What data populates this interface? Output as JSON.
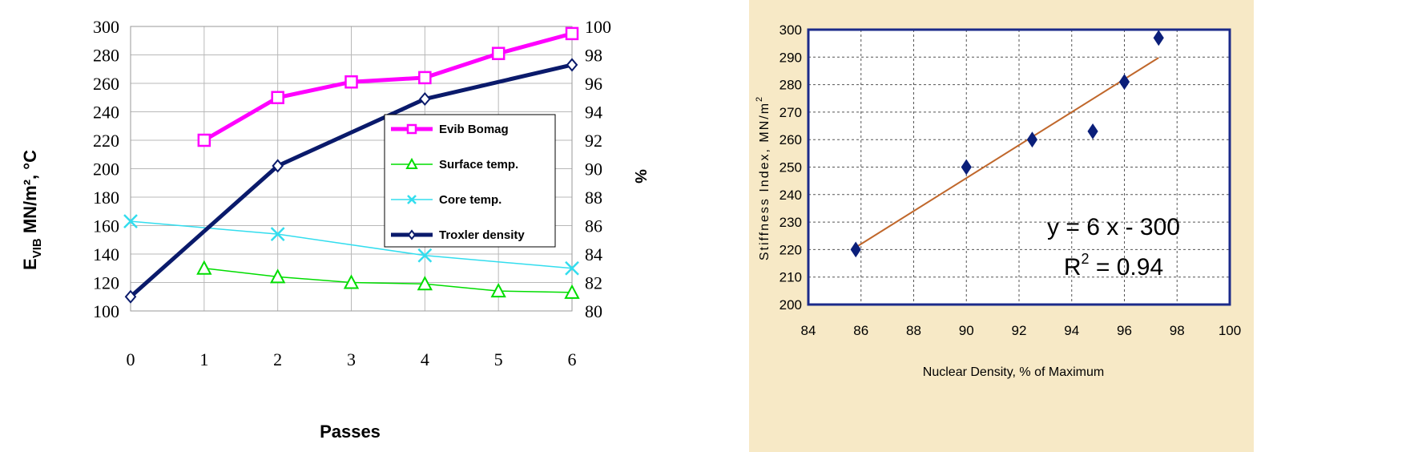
{
  "chart_data": [
    {
      "type": "line",
      "xlabel": "Passes",
      "ylabel_main": "E",
      "ylabel_sub": "VIB",
      "ylabel_rest": " MN/m², °C",
      "y2label": "%",
      "x_ticks": [
        "0",
        "1",
        "2",
        "3",
        "4",
        "5",
        "6"
      ],
      "y_ticks": [
        "100",
        "120",
        "140",
        "160",
        "180",
        "200",
        "220",
        "240",
        "260",
        "280",
        "300"
      ],
      "y2_ticks": [
        "80",
        "82",
        "84",
        "86",
        "88",
        "90",
        "92",
        "94",
        "96",
        "98",
        "100"
      ],
      "xlim": [
        0,
        6
      ],
      "ylim": [
        100,
        300
      ],
      "y2lim": [
        80,
        100
      ],
      "grid": true,
      "legend_position": "center-right",
      "series": [
        {
          "name": "Evib Bomag",
          "axis": "left",
          "color": "#ff00ff",
          "marker": "square",
          "x": [
            1,
            2,
            3,
            4,
            5,
            6
          ],
          "y": [
            220,
            250,
            261,
            264,
            281,
            295
          ]
        },
        {
          "name": "Surface temp.",
          "axis": "left",
          "color": "#00dd00",
          "marker": "triangle",
          "x": [
            1,
            2,
            3,
            4,
            5,
            6
          ],
          "y": [
            130,
            124,
            120,
            119,
            114,
            113
          ]
        },
        {
          "name": "Core temp.",
          "axis": "left",
          "color": "#33ddee",
          "marker": "x",
          "x": [
            0,
            2,
            4,
            6
          ],
          "y": [
            163,
            154,
            139,
            130
          ]
        },
        {
          "name": "Troxler density",
          "axis": "right",
          "color": "#0a1a6b",
          "marker": "diamond",
          "x": [
            0,
            2,
            4,
            6
          ],
          "y": [
            81,
            90.2,
            94.9,
            97.3
          ]
        }
      ]
    },
    {
      "type": "scatter",
      "xlabel": "Nuclear Density, % of Maximum",
      "ylabel": "Stiffness Index, MN/m",
      "ylabel_sup": "2",
      "x_ticks": [
        "84",
        "86",
        "88",
        "90",
        "92",
        "94",
        "96",
        "98",
        "100"
      ],
      "y_ticks": [
        "200",
        "210",
        "220",
        "230",
        "240",
        "250",
        "260",
        "270",
        "280",
        "290",
        "300"
      ],
      "xlim": [
        84,
        100
      ],
      "ylim": [
        200,
        300
      ],
      "grid": true,
      "points": {
        "x": [
          85.8,
          90,
          92.5,
          94.8,
          96,
          97.3
        ],
        "y": [
          220,
          250,
          260,
          263,
          281,
          297
        ]
      },
      "trendline": {
        "x": [
          85.8,
          97.3
        ],
        "y": [
          220.8,
          289.8
        ]
      },
      "equation": "y = 6 x - 300",
      "r2_prefix": "R",
      "r2_sup": "2",
      "r2_suffix": " = 0.94",
      "colors": {
        "points": "#0b1f7a",
        "trendline": "#c0672b",
        "frame": "#1b2a8a",
        "background": "#f7e9c6"
      }
    }
  ]
}
